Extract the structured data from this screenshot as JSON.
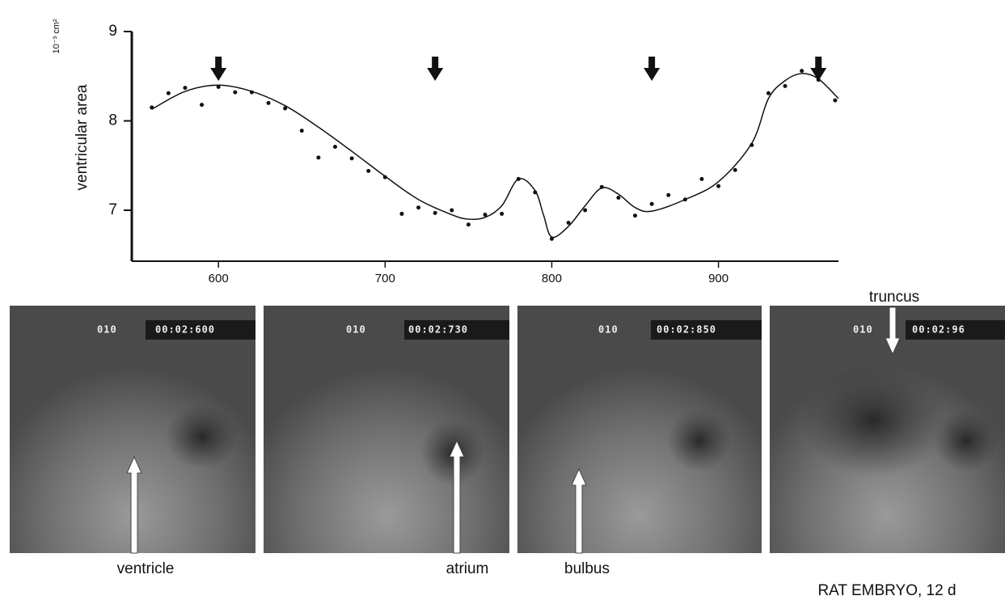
{
  "chart_data": {
    "type": "scatter",
    "y_label": "ventricular area",
    "y_unit": "10⁻³ cm²",
    "xlim": [
      548,
      972
    ],
    "ylim": [
      6.43,
      9
    ],
    "xticks": [
      600,
      700,
      800,
      900
    ],
    "yticks": [
      7,
      8,
      9
    ],
    "x": [
      560,
      570,
      580,
      590,
      600,
      610,
      620,
      630,
      640,
      650,
      660,
      670,
      680,
      690,
      700,
      710,
      720,
      730,
      740,
      750,
      760,
      770,
      780,
      790,
      800,
      810,
      820,
      830,
      840,
      850,
      860,
      870,
      880,
      890,
      900,
      910,
      920,
      930,
      940,
      950,
      960,
      970
    ],
    "y": [
      8.15,
      8.31,
      8.37,
      8.18,
      8.38,
      8.32,
      8.32,
      8.2,
      8.14,
      7.89,
      7.59,
      7.71,
      7.58,
      7.44,
      7.37,
      6.96,
      7.03,
      6.97,
      7.0,
      6.84,
      6.95,
      6.96,
      7.35,
      7.2,
      6.68,
      6.86,
      7.0,
      7.26,
      7.14,
      6.94,
      7.07,
      7.17,
      7.12,
      7.35,
      7.27,
      7.45,
      7.73,
      8.31,
      8.39,
      8.56,
      8.46,
      8.23
    ],
    "curve_x": [
      560,
      580,
      600,
      620,
      640,
      660,
      680,
      700,
      720,
      740,
      750,
      760,
      770,
      780,
      790,
      795,
      800,
      810,
      820,
      830,
      840,
      850,
      860,
      880,
      900,
      920,
      930,
      940,
      950,
      960,
      972
    ],
    "curve_y": [
      8.13,
      8.33,
      8.4,
      8.33,
      8.17,
      7.93,
      7.66,
      7.38,
      7.12,
      6.95,
      6.9,
      6.92,
      7.05,
      7.35,
      7.22,
      6.95,
      6.7,
      6.82,
      7.05,
      7.25,
      7.18,
      7.03,
      6.99,
      7.12,
      7.32,
      7.75,
      8.25,
      8.45,
      8.53,
      8.47,
      8.25
    ],
    "arrow_x": [
      600,
      730,
      860,
      960
    ],
    "color": "#111"
  },
  "frames": [
    {
      "counter": "010",
      "time": "00:02:600",
      "label": "ventricle"
    },
    {
      "counter": "010",
      "time": "00:02:730",
      "label": "atrium"
    },
    {
      "counter": "010",
      "time": "00:02:850",
      "label": "bulbus"
    },
    {
      "counter": "010",
      "time": "00:02:96",
      "label": "truncus"
    }
  ],
  "caption": "RAT EMBRYO, 12 d"
}
